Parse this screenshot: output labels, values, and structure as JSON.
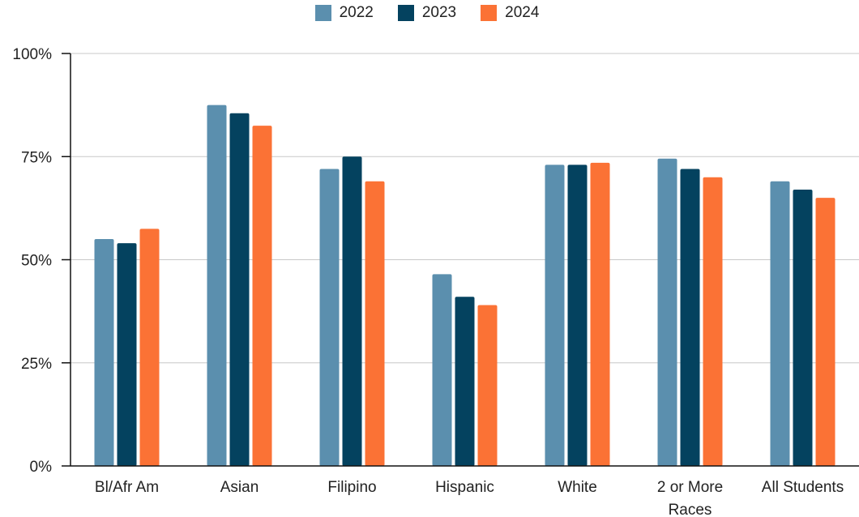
{
  "chart_data": {
    "type": "bar",
    "categories": [
      "Bl/Afr Am",
      "Asian",
      "Filipino",
      "Hispanic",
      "White",
      "2 or More Races",
      "All Students"
    ],
    "category_lines": [
      [
        "Bl/Afr Am"
      ],
      [
        "Asian"
      ],
      [
        "Filipino"
      ],
      [
        "Hispanic"
      ],
      [
        "White"
      ],
      [
        "2 or More",
        "Races"
      ],
      [
        "All Students"
      ]
    ],
    "series": [
      {
        "name": "2022",
        "color": "#5b8fae",
        "values": [
          0.55,
          0.875,
          0.72,
          0.465,
          0.73,
          0.745,
          0.69
        ]
      },
      {
        "name": "2023",
        "color": "#04425f",
        "values": [
          0.54,
          0.855,
          0.75,
          0.41,
          0.73,
          0.72,
          0.67
        ]
      },
      {
        "name": "2024",
        "color": "#fb7235",
        "values": [
          0.575,
          0.825,
          0.69,
          0.39,
          0.735,
          0.7,
          0.65
        ]
      }
    ],
    "ylim": [
      0,
      1
    ],
    "yticks": [
      0,
      0.25,
      0.5,
      0.75,
      1
    ],
    "ytick_labels": [
      "0%",
      "25%",
      "50%",
      "75%",
      "100%"
    ],
    "grid": true,
    "legend_position": "top-center"
  }
}
